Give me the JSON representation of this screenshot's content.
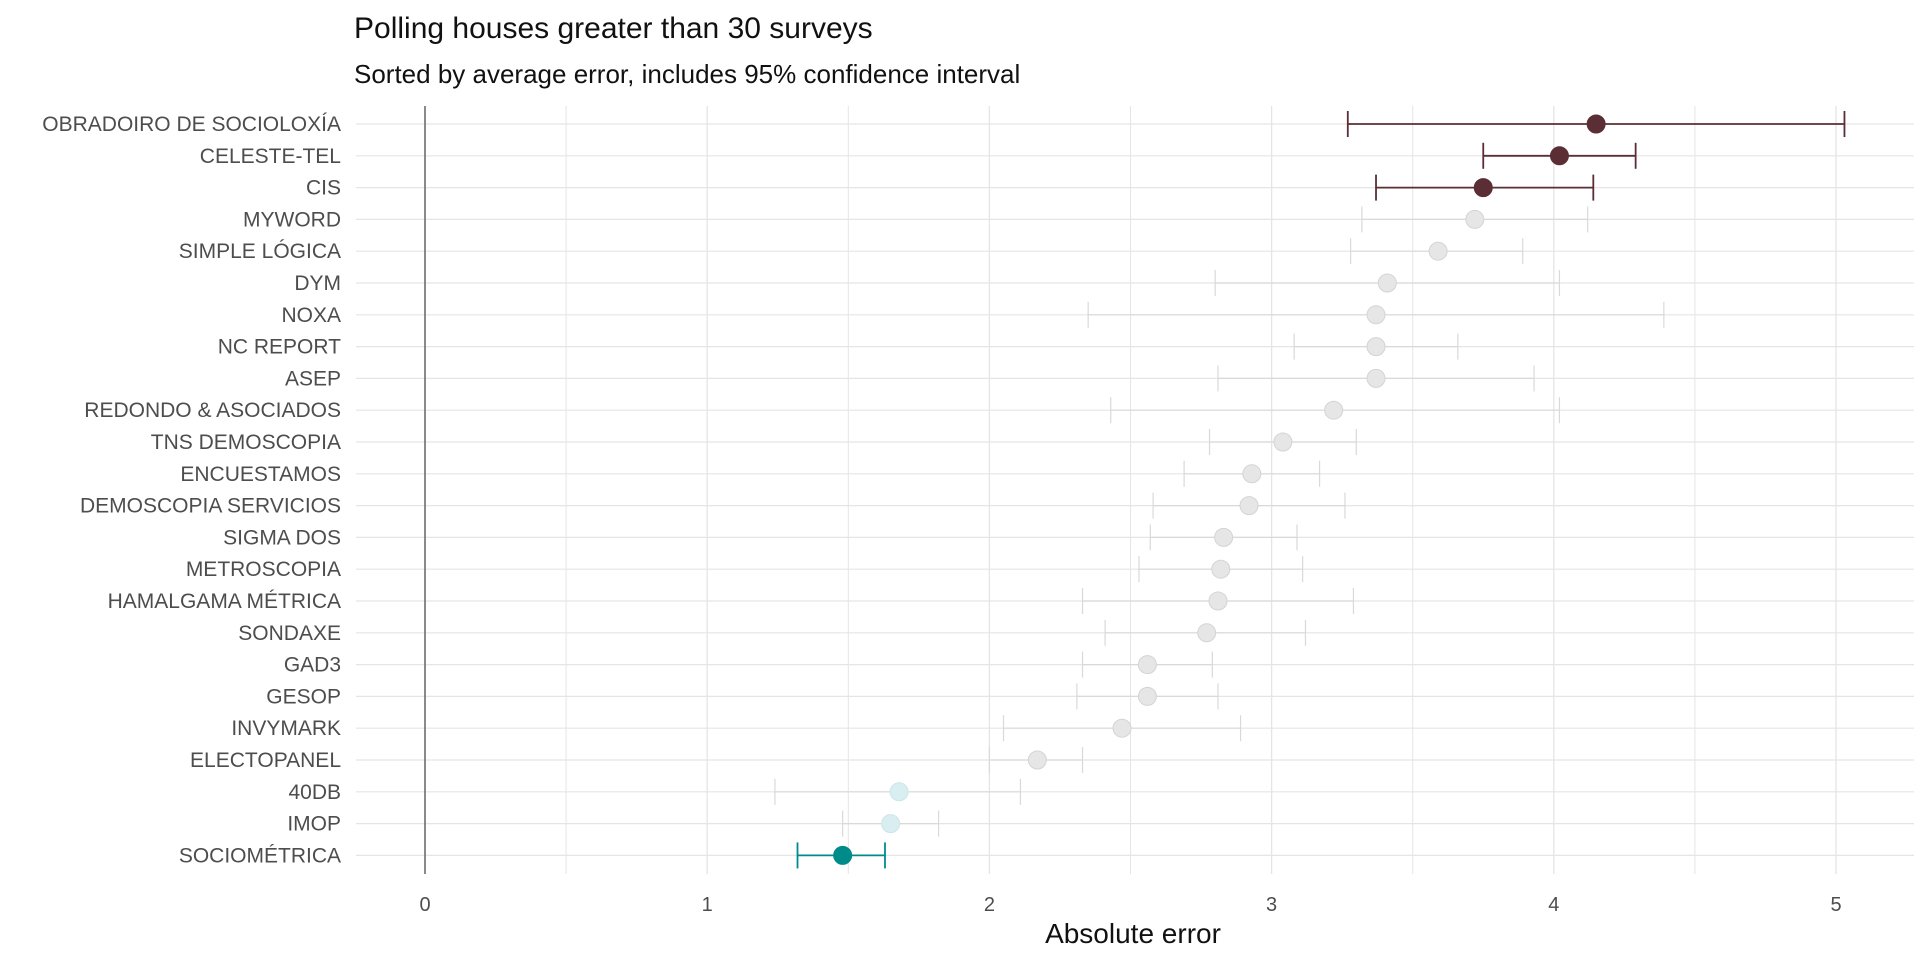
{
  "chart_data": {
    "type": "scatter",
    "title": "Polling houses greater than 30 surveys",
    "subtitle": "Sorted by average error, includes 95% confidence interval",
    "xlabel": "Absolute error",
    "ylabel": "",
    "xlim": [
      0,
      5
    ],
    "x_ticks": [
      "0",
      "1",
      "2",
      "3",
      "4",
      "5"
    ],
    "grid": true,
    "legend": "none",
    "reference_line_x": 0,
    "colors": {
      "highlight_high": "#5a2e34",
      "highlight_low": "#008b8b",
      "muted_point": "#e6e6e6",
      "muted_low_point": "#d8eef0",
      "muted_line": "#d9d9d9",
      "grid": "#e5e5e5",
      "zero_line": "#6e6e6e"
    },
    "points": [
      {
        "label": "OBRADOIRO DE SOCIOLOXÍA",
        "mean": 4.15,
        "low": 3.27,
        "high": 5.03,
        "group": "high"
      },
      {
        "label": "CELESTE-TEL",
        "mean": 4.02,
        "low": 3.75,
        "high": 4.29,
        "group": "high"
      },
      {
        "label": "CIS",
        "mean": 3.75,
        "low": 3.37,
        "high": 4.14,
        "group": "high"
      },
      {
        "label": "MYWORD",
        "mean": 3.72,
        "low": 3.32,
        "high": 4.12,
        "group": "mid"
      },
      {
        "label": "SIMPLE LÓGICA",
        "mean": 3.59,
        "low": 3.28,
        "high": 3.89,
        "group": "mid"
      },
      {
        "label": "DYM",
        "mean": 3.41,
        "low": 2.8,
        "high": 4.02,
        "group": "mid"
      },
      {
        "label": "NOXA",
        "mean": 3.37,
        "low": 2.35,
        "high": 4.39,
        "group": "mid"
      },
      {
        "label": "NC REPORT",
        "mean": 3.37,
        "low": 3.08,
        "high": 3.66,
        "group": "mid"
      },
      {
        "label": "ASEP",
        "mean": 3.37,
        "low": 2.81,
        "high": 3.93,
        "group": "mid"
      },
      {
        "label": "REDONDO & ASOCIADOS",
        "mean": 3.22,
        "low": 2.43,
        "high": 4.02,
        "group": "mid"
      },
      {
        "label": "TNS DEMOSCOPIA",
        "mean": 3.04,
        "low": 2.78,
        "high": 3.3,
        "group": "mid"
      },
      {
        "label": "ENCUESTAMOS",
        "mean": 2.93,
        "low": 2.69,
        "high": 3.17,
        "group": "mid"
      },
      {
        "label": "DEMOSCOPIA SERVICIOS",
        "mean": 2.92,
        "low": 2.58,
        "high": 3.26,
        "group": "mid"
      },
      {
        "label": "SIGMA DOS",
        "mean": 2.83,
        "low": 2.57,
        "high": 3.09,
        "group": "mid"
      },
      {
        "label": "METROSCOPIA",
        "mean": 2.82,
        "low": 2.53,
        "high": 3.11,
        "group": "mid"
      },
      {
        "label": "HAMALGAMA MÉTRICA",
        "mean": 2.81,
        "low": 2.33,
        "high": 3.29,
        "group": "mid"
      },
      {
        "label": "SONDAXE",
        "mean": 2.77,
        "low": 2.41,
        "high": 3.12,
        "group": "mid"
      },
      {
        "label": "GAD3",
        "mean": 2.56,
        "low": 2.33,
        "high": 2.79,
        "group": "mid"
      },
      {
        "label": "GESOP",
        "mean": 2.56,
        "low": 2.31,
        "high": 2.81,
        "group": "mid"
      },
      {
        "label": "INVYMARK",
        "mean": 2.47,
        "low": 2.05,
        "high": 2.89,
        "group": "mid"
      },
      {
        "label": "ELECTOPANEL",
        "mean": 2.17,
        "low": 2.0,
        "high": 2.33,
        "group": "mid"
      },
      {
        "label": "40DB",
        "mean": 1.68,
        "low": 1.24,
        "high": 2.11,
        "group": "low-muted"
      },
      {
        "label": "IMOP",
        "mean": 1.65,
        "low": 1.48,
        "high": 1.82,
        "group": "low-muted"
      },
      {
        "label": "SOCIOMÉTRICA",
        "mean": 1.48,
        "low": 1.32,
        "high": 1.63,
        "group": "low"
      }
    ]
  }
}
